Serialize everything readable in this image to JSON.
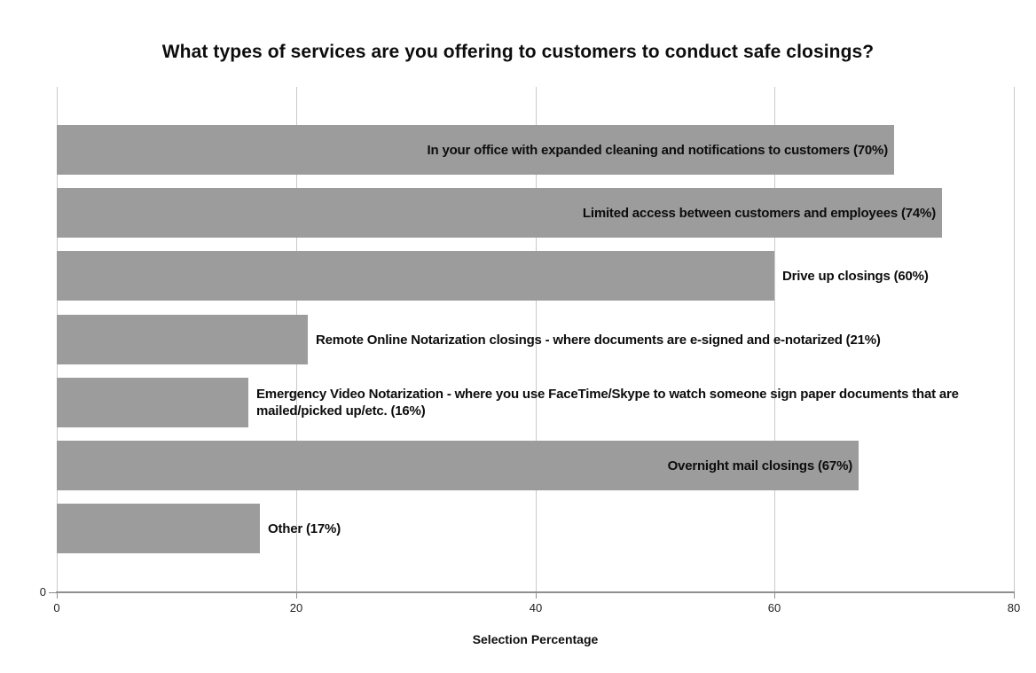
{
  "title": "What types of services are you offering to customers to conduct safe closings?",
  "chart_data": {
    "type": "bar",
    "orientation": "horizontal",
    "title": "What types of services are you offering to customers to conduct safe closings?",
    "xlabel": "Selection Percentage",
    "ylabel": "",
    "xlim": [
      0,
      80
    ],
    "xticks": [
      0,
      20,
      40,
      60,
      80
    ],
    "y_axis_zero_label": "0",
    "grid": "vertical",
    "legend": "none",
    "categories": [
      "In your office with expanded cleaning and notifications to customers",
      "Limited access between customers and employees",
      "Drive up closings",
      "Remote Online Notarization closings - where documents are e-signed and e-notarized",
      "Emergency Video Notarization - where you use FaceTime/Skype to watch someone sign paper documents that are mailed/picked up/etc.",
      "Overnight mail closings",
      "Other"
    ],
    "values": [
      70,
      74,
      60,
      21,
      16,
      67,
      17
    ],
    "bars": [
      {
        "label": "In your office with expanded cleaning and notifications to customers (70%)",
        "value": 70,
        "label_inside": true
      },
      {
        "label": "Limited access between customers and employees (74%)",
        "value": 74,
        "label_inside": true
      },
      {
        "label": "Drive up closings (60%)",
        "value": 60,
        "label_inside": false
      },
      {
        "label": "Remote Online Notarization closings - where documents are e-signed and e-notarized (21%)",
        "value": 21,
        "label_inside": false
      },
      {
        "label": "Emergency Video Notarization - where you use FaceTime/Skype to watch someone sign paper documents that are mailed/picked up/etc. (16%)",
        "value": 16,
        "label_inside": false
      },
      {
        "label": "Overnight mail closings (67%)",
        "value": 67,
        "label_inside": true
      },
      {
        "label": "Other (17%)",
        "value": 17,
        "label_inside": false
      }
    ],
    "colors": {
      "bar": "#9c9c9c",
      "gridline": "#c9c9c9",
      "axis": "#8f8f8f",
      "text": "#0d0d0d",
      "background": "#ffffff"
    }
  }
}
